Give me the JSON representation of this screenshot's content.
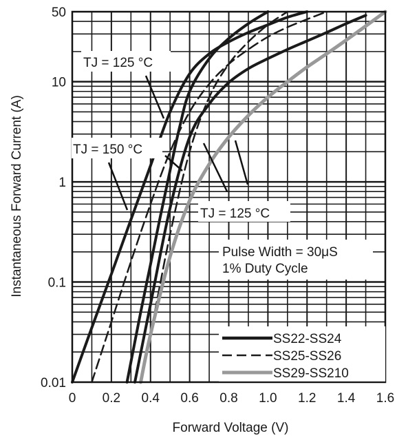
{
  "chart_data": {
    "type": "line",
    "title": "",
    "xlabel": "Forward Voltage (V)",
    "ylabel": "Instantaneous Forward Current (A)",
    "xlim": [
      0,
      1.6
    ],
    "ylim": [
      0.01,
      50
    ],
    "y_scale": "log",
    "grid": true,
    "x_ticks": [
      "0",
      "0.2",
      "0.4",
      "0.6",
      "0.8",
      "1.0",
      "1.2",
      "1.4",
      "1.6"
    ],
    "y_ticks": [
      "0.01",
      "0.1",
      "1",
      "10",
      "50"
    ],
    "series": [
      {
        "name": "SS22-SS24",
        "style": "solid",
        "color": "#1a1a1a",
        "x": [
          0.0,
          0.1,
          0.2,
          0.3,
          0.4,
          0.5,
          0.6,
          0.7,
          0.8,
          0.9,
          1.0,
          1.1,
          1.2
        ],
        "y": [
          0.01,
          0.035,
          0.12,
          0.42,
          1.45,
          5.0,
          12.0,
          19.0,
          25.0,
          31.0,
          37.0,
          44.0,
          50.0
        ]
      },
      {
        "name": "SS22-SS24",
        "style": "solid",
        "color": "#1a1a1a",
        "x": [
          0.28,
          0.35,
          0.4,
          0.45,
          0.5,
          0.55,
          0.6,
          0.7,
          0.8,
          0.9,
          1.0
        ],
        "y": [
          0.01,
          0.05,
          0.15,
          0.45,
          1.3,
          3.6,
          8.0,
          17.0,
          27.0,
          38.0,
          50.0
        ]
      },
      {
        "name": "SS22-SS24",
        "style": "solid",
        "color": "#1a1a1a",
        "x": [
          0.32,
          0.4,
          0.5,
          0.6,
          0.7,
          0.8,
          0.9,
          1.0,
          1.1,
          1.2,
          1.3,
          1.4,
          1.5
        ],
        "y": [
          0.01,
          0.06,
          0.55,
          2.8,
          6.0,
          9.8,
          13.5,
          17.0,
          21.0,
          25.5,
          31.0,
          38.0,
          46.0
        ]
      },
      {
        "name": "SS25-SS26",
        "style": "dashed",
        "color": "#1a1a1a",
        "x": [
          0.1,
          0.15,
          0.2,
          0.3,
          0.4,
          0.5,
          0.6,
          0.7,
          0.8,
          0.9,
          1.0,
          1.1,
          1.2,
          1.3
        ],
        "y": [
          0.01,
          0.02,
          0.04,
          0.16,
          0.6,
          2.0,
          5.0,
          9.5,
          15.0,
          21.0,
          28.0,
          35.0,
          42.0,
          50.0
        ]
      },
      {
        "name": "SS25-SS26",
        "style": "dashed",
        "color": "#1a1a1a",
        "x": [
          0.35,
          0.4,
          0.5,
          0.6,
          0.7,
          0.8,
          0.9,
          1.0,
          1.1
        ],
        "y": [
          0.01,
          0.03,
          0.3,
          2.0,
          7.0,
          15.0,
          25.0,
          37.0,
          50.0
        ]
      },
      {
        "name": "SS29-SS210",
        "style": "solid",
        "color": "#999999",
        "x": [
          0.35,
          0.4,
          0.5,
          0.6,
          0.7,
          0.8,
          0.9,
          1.0,
          1.1,
          1.2,
          1.3,
          1.4,
          1.5,
          1.6
        ],
        "y": [
          0.01,
          0.03,
          0.18,
          0.65,
          1.5,
          2.8,
          4.6,
          7.0,
          10.0,
          14.0,
          19.0,
          26.0,
          36.0,
          50.0
        ]
      }
    ],
    "annotations": [
      {
        "text": "TJ = 125 °C"
      },
      {
        "text": "TJ = 150 °C"
      },
      {
        "text": "TJ = 125 °C"
      },
      {
        "text": "Pulse Width = 30μS"
      },
      {
        "text": "1% Duty Cycle"
      }
    ],
    "legend": {
      "placement": "bottom-right",
      "entries": [
        {
          "label": "SS22-SS24",
          "style": "solid",
          "color": "#1a1a1a"
        },
        {
          "label": "SS25-SS26",
          "style": "dashed",
          "color": "#1a1a1a"
        },
        {
          "label": "SS29-SS210",
          "style": "solid",
          "color": "#999999"
        }
      ]
    }
  }
}
